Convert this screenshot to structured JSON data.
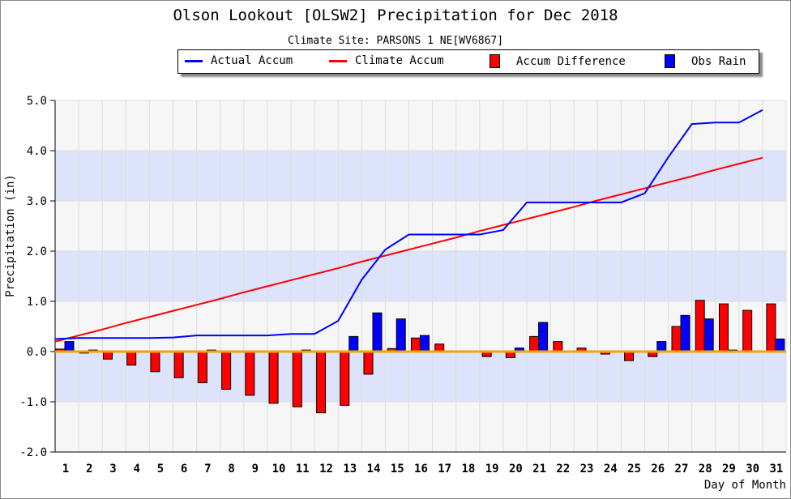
{
  "chart_data": {
    "type": "bar",
    "title": "Olson Lookout [OLSW2] Precipitation for Dec 2018",
    "subtitle": "Climate Site: PARSONS 1 NE[WV6867]",
    "xlabel": "Day of Month",
    "ylabel": "Precipitation (in)",
    "ylim": [
      -2.0,
      5.0
    ],
    "yticks": [
      "-2.0",
      "-1.0",
      "0.0",
      "1.0",
      "2.0",
      "3.0",
      "4.0",
      "5.0"
    ],
    "categories": [
      "1",
      "2",
      "3",
      "4",
      "5",
      "6",
      "7",
      "8",
      "9",
      "10",
      "11",
      "12",
      "13",
      "14",
      "15",
      "16",
      "17",
      "18",
      "19",
      "20",
      "21",
      "22",
      "23",
      "24",
      "25",
      "26",
      "27",
      "28",
      "29",
      "30",
      "31"
    ],
    "legend": [
      "Actual Accum",
      "Climate Accum",
      "Accum Difference",
      "Obs Rain"
    ],
    "legend_placement": "top",
    "series": [
      {
        "name": "Actual Accum",
        "type": "line",
        "color": "#0000ff",
        "values": [
          0.25,
          0.27,
          0.27,
          0.27,
          0.27,
          0.28,
          0.32,
          0.32,
          0.32,
          0.32,
          0.35,
          0.35,
          0.61,
          1.43,
          2.03,
          2.33,
          2.33,
          2.33,
          2.33,
          2.42,
          2.97,
          2.97,
          2.97,
          2.97,
          2.97,
          3.15,
          3.87,
          4.53,
          4.56,
          4.56,
          4.81
        ]
      },
      {
        "name": "Climate Accum",
        "type": "line",
        "color": "#ff0000",
        "values": [
          0.2,
          0.32,
          0.44,
          0.57,
          0.69,
          0.81,
          0.93,
          1.05,
          1.18,
          1.3,
          1.42,
          1.54,
          1.66,
          1.79,
          1.91,
          2.03,
          2.15,
          2.27,
          2.4,
          2.52,
          2.64,
          2.76,
          2.88,
          3.01,
          3.13,
          3.25,
          3.37,
          3.49,
          3.62,
          3.74,
          3.86
        ]
      },
      {
        "name": "Accum Difference",
        "type": "bar",
        "color": "#ff0000",
        "values": [
          0.05,
          -0.03,
          -0.15,
          -0.27,
          -0.4,
          -0.52,
          -0.62,
          -0.75,
          -0.87,
          -1.03,
          -1.1,
          -1.22,
          -1.07,
          -0.45,
          0.06,
          0.27,
          0.15,
          0.0,
          -0.1,
          -0.12,
          0.3,
          0.2,
          0.07,
          -0.05,
          -0.18,
          -0.1,
          0.5,
          1.02,
          0.95,
          0.82,
          0.95
        ]
      },
      {
        "name": "Obs Rain",
        "type": "bar",
        "color": "#0000ff",
        "values": [
          0.2,
          0.03,
          0,
          0,
          0,
          0,
          0.03,
          0,
          0,
          0,
          0.03,
          0,
          0.3,
          0.77,
          0.65,
          0.32,
          0,
          0,
          0,
          0.07,
          0.58,
          0,
          0,
          0,
          0,
          0.2,
          0.72,
          0.65,
          0.03,
          0,
          0.25
        ]
      }
    ]
  }
}
